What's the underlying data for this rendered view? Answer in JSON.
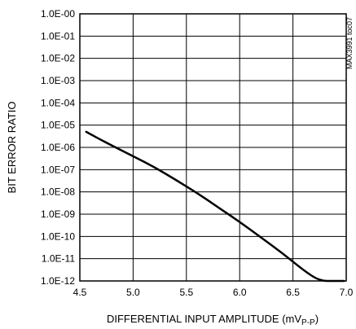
{
  "chart_data": {
    "type": "line",
    "title": "",
    "xlabel": "DIFFERENTIAL INPUT AMPLITUDE (mV",
    "xlabel_sub": "P-P",
    "xlabel_end": ")",
    "ylabel": "BIT ERROR RATIO",
    "side_note": "MAX3991 toc07",
    "y_scale": "log",
    "grid": true,
    "xlim": [
      4.5,
      7.0
    ],
    "ylim_exp": [
      -12,
      0
    ],
    "x_ticks": [
      "4.5",
      "5.0",
      "5.5",
      "6.0",
      "6.5",
      "7.0"
    ],
    "y_ticks": [
      "1.0E-00",
      "1.0E-01",
      "1.0E-02",
      "1.0E-03",
      "1.0E-04",
      "1.0E-05",
      "1.0E-06",
      "1.0E-07",
      "1.0E-08",
      "1.0E-09",
      "1.0E-10",
      "1.0E-11",
      "1.0E-12"
    ],
    "series": [
      {
        "color": "#000000",
        "x": [
          4.56,
          4.75,
          5.0,
          5.2,
          5.4,
          5.6,
          5.8,
          6.0,
          6.2,
          6.4,
          6.6,
          6.75,
          6.9,
          6.98
        ],
        "y": [
          5e-06,
          1.6e-06,
          4e-07,
          1.3e-07,
          3.5e-08,
          9e-09,
          2e-09,
          4.5e-10,
          9e-11,
          1.8e-11,
          3e-12,
          7e-13,
          1.8e-13,
          1e-13
        ]
      }
    ]
  }
}
